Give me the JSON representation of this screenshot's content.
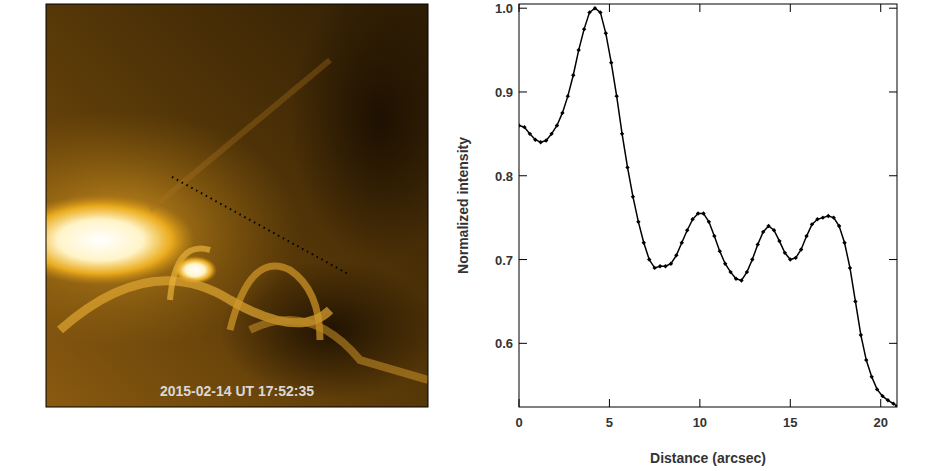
{
  "chart_data": {
    "type": "line",
    "xlabel": "Distance (arcsec)",
    "ylabel": "Normalized intensity",
    "x": [
      0,
      0.3,
      0.6,
      0.9,
      1.2,
      1.5,
      1.8,
      2.1,
      2.4,
      2.7,
      3.0,
      3.3,
      3.6,
      3.9,
      4.2,
      4.5,
      4.8,
      5.1,
      5.4,
      5.7,
      6.0,
      6.3,
      6.6,
      6.9,
      7.2,
      7.5,
      7.8,
      8.1,
      8.4,
      8.7,
      9.0,
      9.3,
      9.6,
      9.9,
      10.2,
      10.5,
      10.8,
      11.1,
      11.4,
      11.7,
      12.0,
      12.3,
      12.6,
      12.9,
      13.2,
      13.5,
      13.8,
      14.1,
      14.4,
      14.7,
      15.0,
      15.3,
      15.6,
      15.9,
      16.2,
      16.5,
      16.8,
      17.1,
      17.4,
      17.7,
      18.0,
      18.3,
      18.6,
      18.9,
      19.2,
      19.5,
      19.8,
      20.1,
      20.4,
      20.7,
      20.9
    ],
    "values": [
      0.86,
      0.858,
      0.85,
      0.843,
      0.84,
      0.842,
      0.85,
      0.86,
      0.875,
      0.895,
      0.92,
      0.95,
      0.975,
      0.995,
      1.0,
      0.995,
      0.97,
      0.935,
      0.895,
      0.85,
      0.81,
      0.775,
      0.745,
      0.72,
      0.7,
      0.69,
      0.692,
      0.692,
      0.695,
      0.705,
      0.72,
      0.735,
      0.748,
      0.755,
      0.755,
      0.745,
      0.728,
      0.71,
      0.695,
      0.685,
      0.677,
      0.675,
      0.685,
      0.7,
      0.718,
      0.733,
      0.74,
      0.735,
      0.722,
      0.708,
      0.7,
      0.702,
      0.712,
      0.728,
      0.742,
      0.748,
      0.75,
      0.752,
      0.75,
      0.74,
      0.72,
      0.69,
      0.65,
      0.61,
      0.58,
      0.56,
      0.545,
      0.537,
      0.532,
      0.528,
      0.525
    ],
    "color": "#000000",
    "marker": "diamond",
    "line_style": "solid",
    "xlim": [
      0,
      20.9
    ],
    "ylim": [
      0.524,
      1.005
    ],
    "xticks": [
      0,
      5,
      10,
      15,
      20
    ],
    "yticks": [
      0.6,
      0.7,
      0.8,
      0.9,
      {
        "value": 1.0,
        "label": "1.0"
      }
    ],
    "grid": false
  },
  "image_panel": {
    "timestamp": "2015-02-14 UT 17:52:35"
  }
}
